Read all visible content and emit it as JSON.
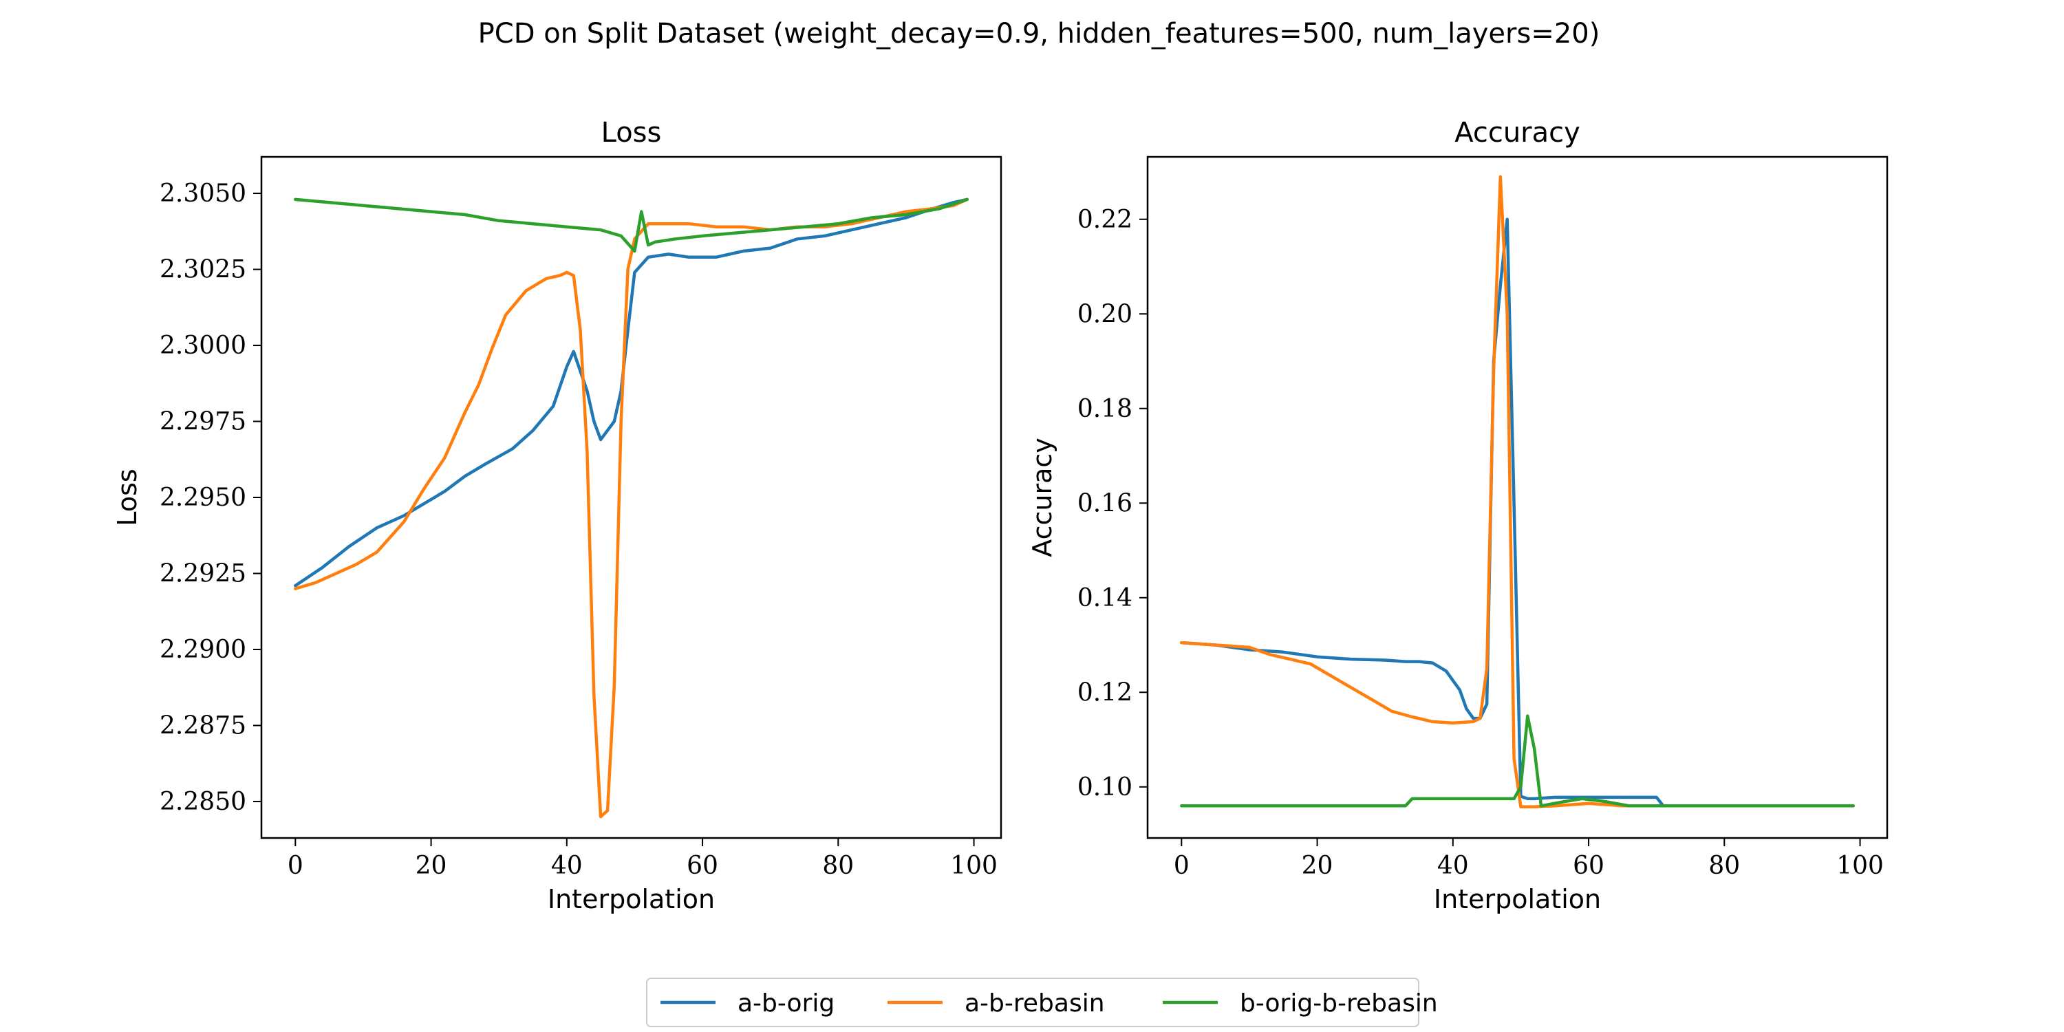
{
  "figure_title": "PCD on Split Dataset (weight_decay=0.9, hidden_features=500, num_layers=20)",
  "legend": {
    "placement": "bottom-center",
    "entries": [
      {
        "label": "a-b-orig",
        "color": "#1f77b4"
      },
      {
        "label": "a-b-rebasin",
        "color": "#ff7f0e"
      },
      {
        "label": "b-orig-b-rebasin",
        "color": "#2ca02c"
      }
    ]
  },
  "chart_data": [
    {
      "type": "line",
      "title": "Loss",
      "xlabel": "Interpolation",
      "ylabel": "Loss",
      "xlim": [
        -5,
        104
      ],
      "ylim": [
        2.2838,
        2.3062
      ],
      "xticks": [
        0,
        20,
        40,
        60,
        80,
        100
      ],
      "xtick_labels": [
        "0",
        "20",
        "40",
        "60",
        "80",
        "100"
      ],
      "yticks": [
        2.285,
        2.2875,
        2.29,
        2.2925,
        2.295,
        2.2975,
        2.3,
        2.3025,
        2.305
      ],
      "ytick_labels": [
        "2.2850",
        "2.2875",
        "2.2900",
        "2.2925",
        "2.2950",
        "2.2975",
        "2.3000",
        "2.3025",
        "2.3050"
      ],
      "grid": false,
      "series": [
        {
          "name": "a-b-orig",
          "color": "#1f77b4",
          "x": [
            0,
            4,
            8,
            12,
            16,
            19,
            22,
            25,
            28,
            32,
            35,
            38,
            40,
            41,
            43,
            44,
            45,
            47,
            48,
            49,
            50,
            52,
            55,
            58,
            62,
            66,
            70,
            74,
            78,
            82,
            86,
            90,
            94,
            97,
            99
          ],
          "y": [
            2.2921,
            2.2927,
            2.2934,
            2.294,
            2.2944,
            2.2948,
            2.2952,
            2.2957,
            2.2961,
            2.2966,
            2.2972,
            2.298,
            2.2993,
            2.2998,
            2.2985,
            2.2975,
            2.2969,
            2.2975,
            2.2985,
            2.3005,
            2.3024,
            2.3029,
            2.303,
            2.3029,
            2.3029,
            2.3031,
            2.3032,
            2.3035,
            2.3036,
            2.3038,
            2.304,
            2.3042,
            2.3045,
            2.3047,
            2.3048
          ]
        },
        {
          "name": "a-b-rebasin",
          "color": "#ff7f0e",
          "x": [
            0,
            3,
            6,
            9,
            12,
            16,
            19,
            22,
            25,
            27,
            29,
            31,
            34,
            37,
            39,
            40,
            41,
            42,
            43,
            44,
            45,
            46,
            47,
            48,
            49,
            50,
            52,
            55,
            58,
            62,
            66,
            70,
            74,
            78,
            82,
            86,
            90,
            94,
            97,
            99
          ],
          "y": [
            2.292,
            2.2922,
            2.2925,
            2.2928,
            2.2932,
            2.2942,
            2.2953,
            2.2963,
            2.2978,
            2.2987,
            2.2999,
            2.301,
            2.3018,
            2.3022,
            2.3023,
            2.3024,
            2.3023,
            2.3005,
            2.2965,
            2.2885,
            2.2845,
            2.2847,
            2.2888,
            2.2975,
            2.3025,
            2.3035,
            2.304,
            2.304,
            2.304,
            2.3039,
            2.3039,
            2.3038,
            2.3039,
            2.3039,
            2.304,
            2.3042,
            2.3044,
            2.3045,
            2.3046,
            2.3048
          ]
        },
        {
          "name": "b-orig-b-rebasin",
          "color": "#2ca02c",
          "x": [
            0,
            5,
            10,
            15,
            20,
            25,
            30,
            35,
            40,
            45,
            48,
            50,
            51,
            52,
            53,
            56,
            60,
            65,
            70,
            75,
            80,
            85,
            90,
            95,
            99
          ],
          "y": [
            2.3048,
            2.3047,
            2.3046,
            2.3045,
            2.3044,
            2.3043,
            2.3041,
            2.304,
            2.3039,
            2.3038,
            2.3036,
            2.3031,
            2.3044,
            2.3033,
            2.3034,
            2.3035,
            2.3036,
            2.3037,
            2.3038,
            2.3039,
            2.304,
            2.3042,
            2.3043,
            2.3045,
            2.3048
          ]
        }
      ]
    },
    {
      "type": "line",
      "title": "Accuracy",
      "xlabel": "Interpolation",
      "ylabel": "Accuracy",
      "xlim": [
        -5,
        104
      ],
      "ylim": [
        0.0892,
        0.2332
      ],
      "xticks": [
        0,
        20,
        40,
        60,
        80,
        100
      ],
      "xtick_labels": [
        "0",
        "20",
        "40",
        "60",
        "80",
        "100"
      ],
      "yticks": [
        0.1,
        0.12,
        0.14,
        0.16,
        0.18,
        0.2,
        0.22
      ],
      "ytick_labels": [
        "0.10",
        "0.12",
        "0.14",
        "0.16",
        "0.18",
        "0.20",
        "0.22"
      ],
      "grid": false,
      "series": [
        {
          "name": "a-b-orig",
          "color": "#1f77b4",
          "x": [
            0,
            5,
            10,
            15,
            20,
            25,
            30,
            33,
            35,
            37,
            39,
            41,
            42,
            43,
            44,
            45,
            46,
            47,
            48,
            49,
            50,
            51,
            52,
            55,
            60,
            65,
            70,
            71,
            75,
            80,
            90,
            99
          ],
          "y": [
            0.1305,
            0.13,
            0.129,
            0.1285,
            0.1275,
            0.127,
            0.1268,
            0.1265,
            0.1265,
            0.1262,
            0.1245,
            0.1205,
            0.1165,
            0.1145,
            0.1145,
            0.1175,
            0.19,
            0.206,
            0.22,
            0.16,
            0.098,
            0.0975,
            0.0975,
            0.0978,
            0.0978,
            0.0978,
            0.0978,
            0.096,
            0.096,
            0.096,
            0.096,
            0.096
          ]
        },
        {
          "name": "a-b-rebasin",
          "color": "#ff7f0e",
          "x": [
            0,
            5,
            10,
            13,
            16,
            19,
            22,
            25,
            28,
            31,
            34,
            37,
            40,
            43,
            44,
            45,
            46,
            47,
            48,
            49,
            50,
            52,
            55,
            60,
            65,
            70,
            80,
            99
          ],
          "y": [
            0.1305,
            0.13,
            0.1295,
            0.128,
            0.127,
            0.126,
            0.1235,
            0.121,
            0.1185,
            0.116,
            0.1148,
            0.1138,
            0.1135,
            0.1138,
            0.1145,
            0.125,
            0.188,
            0.229,
            0.2,
            0.106,
            0.0958,
            0.0958,
            0.096,
            0.0965,
            0.096,
            0.096,
            0.096,
            0.096
          ]
        },
        {
          "name": "b-orig-b-rebasin",
          "color": "#2ca02c",
          "x": [
            0,
            12,
            33,
            34,
            42,
            49,
            50,
            51,
            52,
            53,
            56,
            59,
            62,
            66,
            70,
            80,
            99
          ],
          "y": [
            0.096,
            0.096,
            0.096,
            0.0975,
            0.0975,
            0.0975,
            0.1,
            0.115,
            0.108,
            0.096,
            0.0968,
            0.0975,
            0.097,
            0.096,
            0.096,
            0.096,
            0.096
          ]
        }
      ]
    }
  ]
}
